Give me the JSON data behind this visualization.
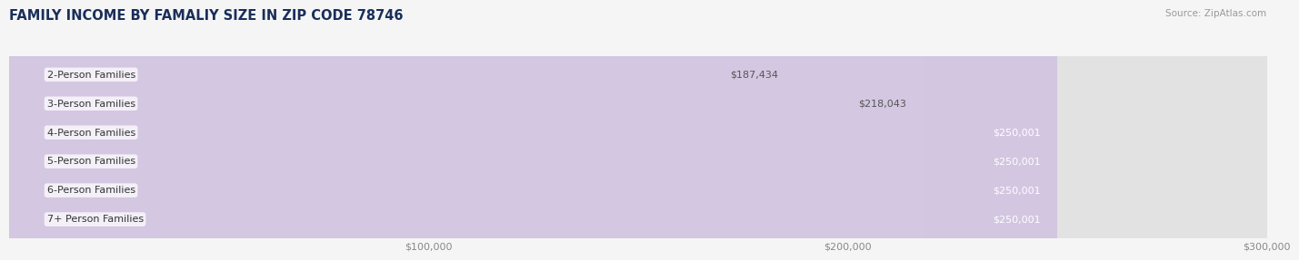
{
  "title": "FAMILY INCOME BY FAMALIY SIZE IN ZIP CODE 78746",
  "source": "Source: ZipAtlas.com",
  "categories": [
    "2-Person Families",
    "3-Person Families",
    "4-Person Families",
    "5-Person Families",
    "6-Person Families",
    "7+ Person Families"
  ],
  "values": [
    187434,
    218043,
    250001,
    250001,
    250001,
    250001
  ],
  "bar_colors": [
    "#a8b4e8",
    "#f0879a",
    "#f5a94e",
    "#e8786a",
    "#7baee8",
    "#b89fd4"
  ],
  "bar_light_colors": [
    "#c8d0f8",
    "#f8b8c8",
    "#fad4a0",
    "#f4a898",
    "#b8d4f4",
    "#d8c8ec"
  ],
  "value_labels": [
    "$187,434",
    "$218,043",
    "$250,001",
    "$250,001",
    "$250,001",
    "$250,001"
  ],
  "value_label_colors": [
    "#555555",
    "#555555",
    "#ffffff",
    "#ffffff",
    "#ffffff",
    "#ffffff"
  ],
  "xlim": [
    0,
    300000
  ],
  "xticks": [
    0,
    100000,
    200000,
    300000
  ],
  "xticklabels": [
    "",
    "$100,000",
    "$200,000",
    "$300,000"
  ],
  "background_color": "#f5f5f5",
  "bar_bg_color": "#e2e2e2",
  "label_fontsize": 8.0,
  "value_fontsize": 8.0,
  "title_fontsize": 10.5,
  "bar_height": 0.72
}
